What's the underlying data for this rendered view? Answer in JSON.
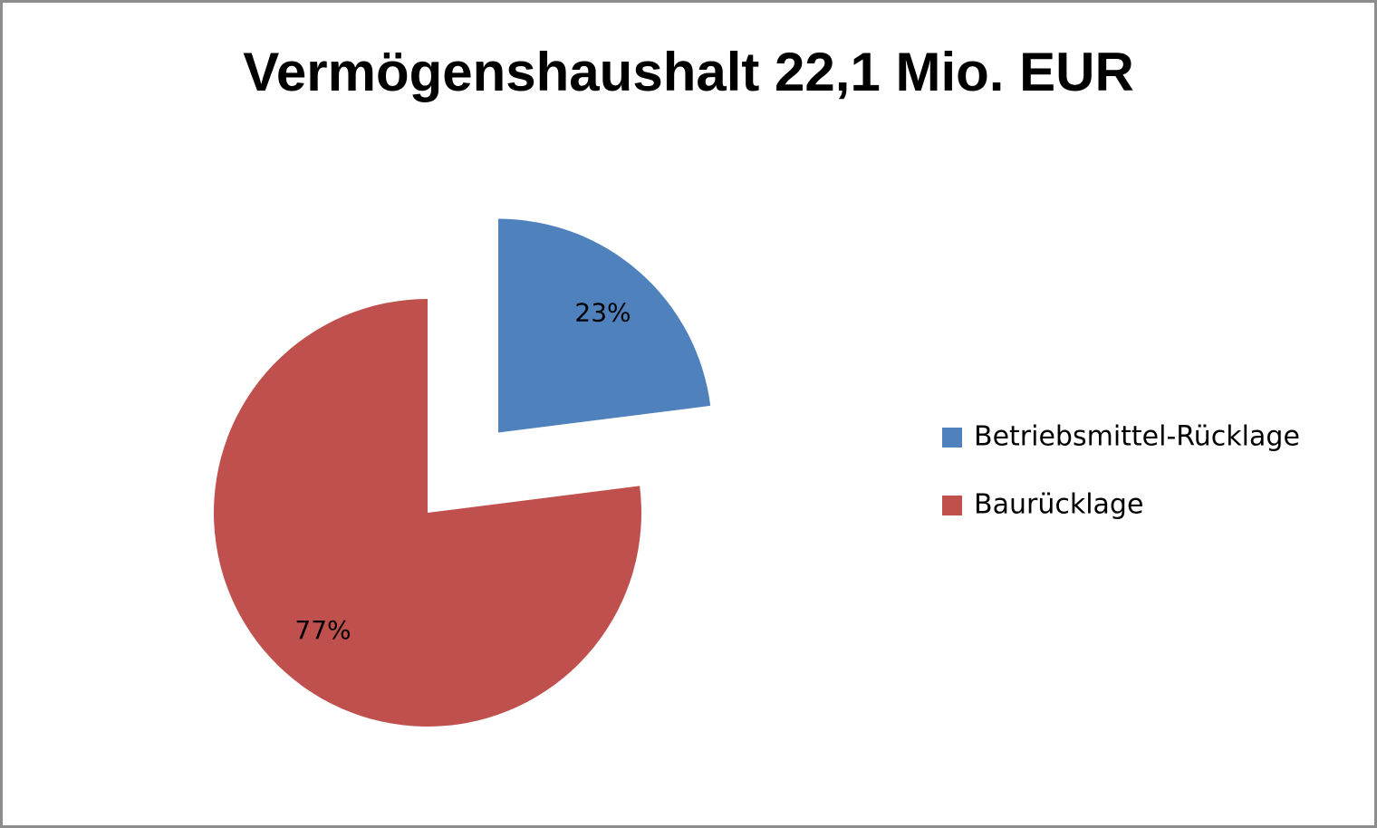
{
  "chart_data": {
    "type": "pie",
    "title": "Vermögenshaushalt 22,1 Mio. EUR",
    "categories": [
      "Betriebsmittel-Rücklage",
      "Baurücklage"
    ],
    "values": [
      23,
      77
    ],
    "value_labels": [
      "23%",
      "77%"
    ],
    "colors": [
      "#4f81bd",
      "#c0504d"
    ],
    "legend": "right"
  }
}
